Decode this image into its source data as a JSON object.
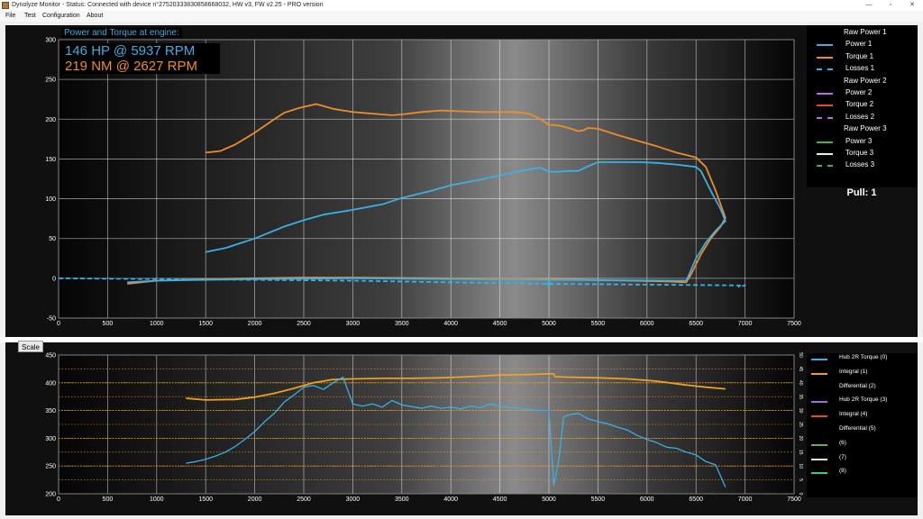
{
  "window": {
    "title": "Dynolyze Monitor - Status: Connected with device n°27520333830858668032, HW v3, FW v2.25 - PRO version",
    "minimize": "—",
    "maximize": "▫",
    "close": "✕"
  },
  "menu": [
    "File",
    "Test",
    "Configuration",
    "About"
  ],
  "info": {
    "heading": "Power and Torque at engine:",
    "power_readout": "146 HP @ 5937 RPM",
    "torque_readout": "219 NM @ 2627 RPM"
  },
  "scale_button": "Scale",
  "pull_label": "Pull: 1",
  "legend_top": [
    {
      "label": "Raw Power 1",
      "color": "",
      "dashed": false
    },
    {
      "label": "Power 1",
      "color": "#3ab0e6",
      "dashed": false
    },
    {
      "label": "Torque 1",
      "color": "#ef8c2a",
      "dashed": false
    },
    {
      "label": "Losses 1",
      "color": "#3ab0e6",
      "dashed": true
    },
    {
      "label": "Raw Power 2",
      "color": "",
      "dashed": false
    },
    {
      "label": "Power 2",
      "color": "#b070e0",
      "dashed": false
    },
    {
      "label": "Torque 2",
      "color": "#e84a2a",
      "dashed": false
    },
    {
      "label": "Losses 2",
      "color": "#b070e0",
      "dashed": true
    },
    {
      "label": "Raw Power 3",
      "color": "",
      "dashed": false
    },
    {
      "label": "Power 3",
      "color": "#4caf50",
      "dashed": false
    },
    {
      "label": "Torque 3",
      "color": "#f4f4c0",
      "dashed": false
    },
    {
      "label": "Losses 3",
      "color": "#4caf50",
      "dashed": true
    }
  ],
  "legend_bottom": [
    {
      "label": "Hub 2R Torque (0)",
      "color": "#3ab0e6"
    },
    {
      "label": "Integral (1)",
      "color": "#f0a020"
    },
    {
      "label": "Differential (2)",
      "color": ""
    },
    {
      "label": "Hub 2R Torque (3)",
      "color": "#a070e0"
    },
    {
      "label": "Integral (4)",
      "color": "#e84a2a"
    },
    {
      "label": "Differential (5)",
      "color": ""
    },
    {
      "label": "(6)",
      "color": "#6aa86a"
    },
    {
      "label": "(7)",
      "color": "#f4f0c0"
    },
    {
      "label": "(8)",
      "color": "#3ad070"
    }
  ],
  "chart_data": [
    {
      "type": "line",
      "title": "Power and Torque at engine:",
      "xlim": [
        0,
        7500
      ],
      "ylim": [
        -50,
        300
      ],
      "x_ticks": [
        0,
        500,
        1000,
        1500,
        2000,
        2500,
        3000,
        3500,
        4000,
        4500,
        5000,
        5500,
        6000,
        6500,
        7000,
        7500
      ],
      "y_ticks": [
        -50,
        0,
        50,
        100,
        150,
        200,
        250,
        300
      ],
      "grid": true,
      "legend": "right",
      "series": [
        {
          "name": "Torque 1",
          "color": "#ef8c2a",
          "points": [
            [
              1500,
              158
            ],
            [
              1650,
              160
            ],
            [
              1800,
              168
            ],
            [
              2000,
              183
            ],
            [
              2200,
              200
            ],
            [
              2300,
              208
            ],
            [
              2450,
              214
            ],
            [
              2627,
              219
            ],
            [
              2800,
              213
            ],
            [
              3000,
              209
            ],
            [
              3200,
              207
            ],
            [
              3400,
              205
            ],
            [
              3500,
              206
            ],
            [
              3700,
              209
            ],
            [
              3900,
              211
            ],
            [
              4100,
              210
            ],
            [
              4300,
              209
            ],
            [
              4500,
              209
            ],
            [
              4650,
              209
            ],
            [
              4800,
              207
            ],
            [
              4900,
              201
            ],
            [
              5000,
              193
            ],
            [
              5100,
              192
            ],
            [
              5200,
              189
            ],
            [
              5300,
              185
            ],
            [
              5350,
              186
            ],
            [
              5400,
              189
            ],
            [
              5500,
              188
            ],
            [
              5700,
              180
            ],
            [
              5900,
              173
            ],
            [
              6100,
              166
            ],
            [
              6300,
              158
            ],
            [
              6500,
              152
            ],
            [
              6600,
              140
            ],
            [
              6700,
              110
            ],
            [
              6800,
              76
            ],
            [
              6750,
              65
            ],
            [
              6650,
              50
            ],
            [
              6550,
              30
            ],
            [
              6450,
              5
            ],
            [
              6400,
              -5
            ],
            [
              6200,
              -4
            ],
            [
              5000,
              -1
            ],
            [
              4000,
              0
            ],
            [
              3000,
              1
            ],
            [
              2500,
              1
            ],
            [
              1500,
              -1
            ],
            [
              1000,
              -3
            ],
            [
              700,
              -7
            ]
          ]
        },
        {
          "name": "Power 1",
          "color": "#3ab0e6",
          "points": [
            [
              1500,
              33
            ],
            [
              1700,
              38
            ],
            [
              2000,
              50
            ],
            [
              2300,
              65
            ],
            [
              2500,
              73
            ],
            [
              2700,
              80
            ],
            [
              3000,
              86
            ],
            [
              3300,
              93
            ],
            [
              3500,
              101
            ],
            [
              3800,
              110
            ],
            [
              4000,
              117
            ],
            [
              4300,
              124
            ],
            [
              4600,
              132
            ],
            [
              4800,
              137
            ],
            [
              4900,
              139
            ],
            [
              4950,
              137
            ],
            [
              5000,
              134
            ],
            [
              5100,
              134
            ],
            [
              5200,
              135
            ],
            [
              5300,
              135
            ],
            [
              5400,
              141
            ],
            [
              5500,
              146
            ],
            [
              5700,
              146
            ],
            [
              5937,
              146
            ],
            [
              6100,
              145
            ],
            [
              6300,
              143
            ],
            [
              6500,
              140
            ],
            [
              6550,
              135
            ],
            [
              6650,
              110
            ],
            [
              6750,
              87
            ],
            [
              6800,
              72
            ],
            [
              6700,
              60
            ],
            [
              6600,
              45
            ],
            [
              6500,
              25
            ],
            [
              6430,
              5
            ],
            [
              6400,
              -3
            ],
            [
              6300,
              -3
            ],
            [
              5000,
              -2
            ],
            [
              4000,
              -1
            ],
            [
              3000,
              0
            ],
            [
              2000,
              -1
            ],
            [
              1500,
              -2
            ],
            [
              1000,
              -3
            ],
            [
              700,
              -5
            ]
          ]
        },
        {
          "name": "Losses 1",
          "color": "#3ab0e6",
          "dashed": true,
          "points": [
            [
              0,
              0
            ],
            [
              1000,
              -1
            ],
            [
              2000,
              -2
            ],
            [
              3000,
              -3
            ],
            [
              4000,
              -5
            ],
            [
              5000,
              -7
            ],
            [
              6000,
              -8
            ],
            [
              7000,
              -9
            ],
            [
              6930,
              -11
            ]
          ]
        }
      ]
    },
    {
      "type": "line",
      "xlim": [
        0,
        7500
      ],
      "ylim": [
        200,
        450
      ],
      "x_ticks": [
        0,
        500,
        1000,
        1500,
        2000,
        2500,
        3000,
        3500,
        4000,
        4500,
        5000,
        5500,
        6000,
        6500,
        7000,
        7500
      ],
      "y_ticks": [
        200,
        250,
        300,
        350,
        400,
        450
      ],
      "y2_ticks": [
        0,
        5,
        10,
        15,
        20,
        25,
        30,
        35,
        40,
        45,
        50
      ],
      "legend": "right",
      "series": [
        {
          "name": "Integral (1)",
          "color": "#f0a020",
          "points": [
            [
              1300,
              372
            ],
            [
              1500,
              369
            ],
            [
              1800,
              370
            ],
            [
              2000,
              374
            ],
            [
              2200,
              381
            ],
            [
              2400,
              390
            ],
            [
              2600,
              400
            ],
            [
              2800,
              406
            ],
            [
              3000,
              407
            ],
            [
              3300,
              408
            ],
            [
              3600,
              408
            ],
            [
              3900,
              409
            ],
            [
              4200,
              411
            ],
            [
              4500,
              414
            ],
            [
              4800,
              415
            ],
            [
              5000,
              416
            ],
            [
              5050,
              416
            ],
            [
              5060,
              411
            ],
            [
              5200,
              410
            ],
            [
              5500,
              409
            ],
            [
              5800,
              407
            ],
            [
              6100,
              403
            ],
            [
              6400,
              396
            ],
            [
              6600,
              392
            ],
            [
              6800,
              389
            ]
          ]
        },
        {
          "name": "Hub 2R Torque (0)",
          "color": "#3ab0e6",
          "points": [
            [
              1300,
              255
            ],
            [
              1400,
              258
            ],
            [
              1500,
              262
            ],
            [
              1600,
              268
            ],
            [
              1700,
              275
            ],
            [
              1800,
              285
            ],
            [
              1900,
              298
            ],
            [
              2000,
              312
            ],
            [
              2100,
              330
            ],
            [
              2200,
              345
            ],
            [
              2300,
              365
            ],
            [
              2400,
              378
            ],
            [
              2500,
              392
            ],
            [
              2600,
              395
            ],
            [
              2700,
              388
            ],
            [
              2800,
              400
            ],
            [
              2900,
              410
            ],
            [
              3000,
              362
            ],
            [
              3100,
              358
            ],
            [
              3200,
              362
            ],
            [
              3300,
              356
            ],
            [
              3400,
              368
            ],
            [
              3500,
              360
            ],
            [
              3600,
              357
            ],
            [
              3700,
              354
            ],
            [
              3800,
              358
            ],
            [
              3900,
              354
            ],
            [
              4000,
              356
            ],
            [
              4100,
              353
            ],
            [
              4200,
              358
            ],
            [
              4300,
              355
            ],
            [
              4400,
              362
            ],
            [
              4500,
              358
            ],
            [
              4600,
              355
            ],
            [
              4700,
              354
            ],
            [
              4800,
              352
            ],
            [
              4900,
              350
            ],
            [
              5000,
              350
            ],
            [
              5050,
              215
            ],
            [
              5100,
              260
            ],
            [
              5150,
              338
            ],
            [
              5200,
              342
            ],
            [
              5300,
              345
            ],
            [
              5400,
              335
            ],
            [
              5500,
              330
            ],
            [
              5600,
              326
            ],
            [
              5700,
              320
            ],
            [
              5800,
              315
            ],
            [
              5900,
              305
            ],
            [
              6000,
              298
            ],
            [
              6100,
              292
            ],
            [
              6200,
              284
            ],
            [
              6300,
              282
            ],
            [
              6400,
              275
            ],
            [
              6500,
              270
            ],
            [
              6600,
              258
            ],
            [
              6700,
              252
            ],
            [
              6800,
              212
            ]
          ]
        }
      ]
    }
  ]
}
